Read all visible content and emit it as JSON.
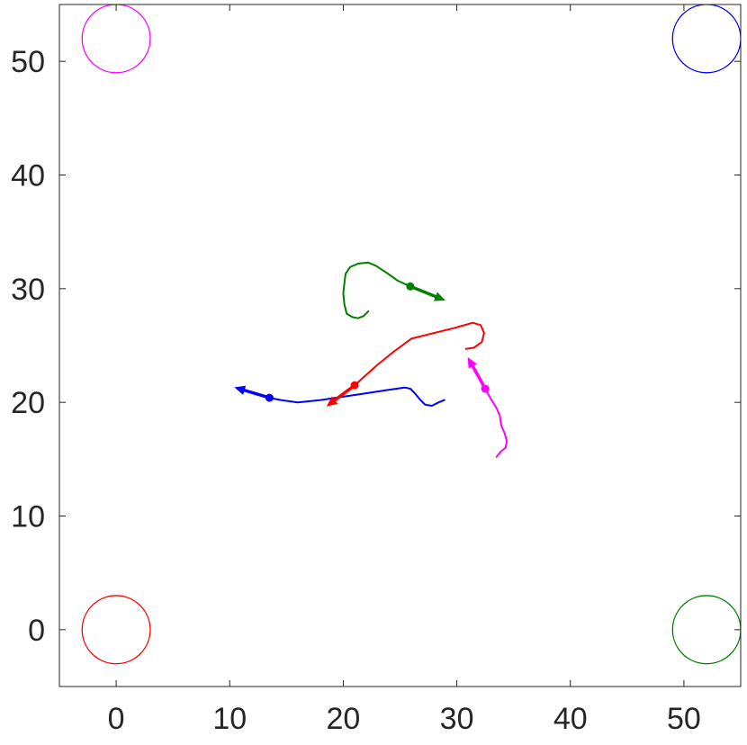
{
  "chart_data": {
    "type": "line",
    "title": "",
    "xlabel": "",
    "ylabel": "",
    "xlim": [
      -5,
      55
    ],
    "ylim": [
      -5,
      55
    ],
    "grid": false,
    "legend": "none",
    "x_ticks": [
      0,
      10,
      20,
      30,
      40,
      50
    ],
    "y_ticks": [
      0,
      10,
      20,
      30,
      40,
      50
    ],
    "x_tick_labels": [
      "0",
      "10",
      "20",
      "30",
      "40",
      "50"
    ],
    "y_tick_labels": [
      "0",
      "10",
      "20",
      "30",
      "40",
      "50"
    ],
    "circles": [
      {
        "color": "#ff0000",
        "cx": 0,
        "cy": 0,
        "r": 3
      },
      {
        "color": "#008000",
        "cx": 52,
        "cy": 0,
        "r": 3
      },
      {
        "color": "#0000ff",
        "cx": 52,
        "cy": 52,
        "r": 3
      },
      {
        "color": "#ff00ff",
        "cx": 0,
        "cy": 52,
        "r": 3
      }
    ],
    "series": [
      {
        "color": "#0000ff",
        "path": [
          [
            28.9,
            20.2
          ],
          [
            28.4,
            20.0
          ],
          [
            27.8,
            19.7
          ],
          [
            27.2,
            19.8
          ],
          [
            26.8,
            20.2
          ],
          [
            26.3,
            20.8
          ],
          [
            25.9,
            21.2
          ],
          [
            25.4,
            21.3
          ],
          [
            24,
            21.1
          ],
          [
            22,
            20.8
          ],
          [
            20,
            20.5
          ],
          [
            18,
            20.2
          ],
          [
            16,
            20.0
          ],
          [
            14.5,
            20.2
          ],
          [
            13.5,
            20.4
          ]
        ],
        "marker": [
          13.5,
          20.4
        ],
        "arrow_to": [
          10.5,
          21.3
        ]
      },
      {
        "color": "#ff0000",
        "path": [
          [
            30.8,
            24.7
          ],
          [
            31.5,
            24.8
          ],
          [
            32.2,
            25.3
          ],
          [
            32.4,
            26.1
          ],
          [
            32.1,
            26.8
          ],
          [
            31.4,
            27.0
          ],
          [
            30,
            26.6
          ],
          [
            26,
            25.6
          ],
          [
            24.5,
            24.5
          ],
          [
            23,
            23.3
          ],
          [
            21,
            21.5
          ]
        ],
        "marker": [
          21.0,
          21.5
        ],
        "arrow_to": [
          18.6,
          19.7
        ]
      },
      {
        "color": "#008000",
        "path": [
          [
            22.2,
            28.0
          ],
          [
            21.8,
            27.6
          ],
          [
            21.3,
            27.4
          ],
          [
            20.8,
            27.5
          ],
          [
            20.3,
            27.8
          ],
          [
            20.1,
            28.6
          ],
          [
            20.0,
            29.6
          ],
          [
            20.1,
            30.5
          ],
          [
            20.2,
            31.3
          ],
          [
            20.6,
            31.9
          ],
          [
            21.3,
            32.2
          ],
          [
            22.2,
            32.3
          ],
          [
            22.9,
            32.0
          ],
          [
            23.8,
            31.4
          ],
          [
            24.8,
            30.7
          ],
          [
            25.9,
            30.2
          ]
        ],
        "marker": [
          25.9,
          30.2
        ],
        "arrow_to": [
          28.9,
          29.0
        ]
      },
      {
        "color": "#ff00ff",
        "path": [
          [
            33.5,
            15.2
          ],
          [
            33.9,
            15.7
          ],
          [
            34.3,
            16.0
          ],
          [
            34.4,
            16.6
          ],
          [
            34.2,
            17.3
          ],
          [
            33.9,
            18.0
          ],
          [
            33.8,
            18.8
          ],
          [
            33.5,
            19.5
          ],
          [
            33.0,
            20.3
          ],
          [
            32.5,
            21.2
          ]
        ],
        "marker": [
          32.5,
          21.2
        ],
        "arrow_to": [
          31.0,
          23.9
        ]
      }
    ]
  }
}
